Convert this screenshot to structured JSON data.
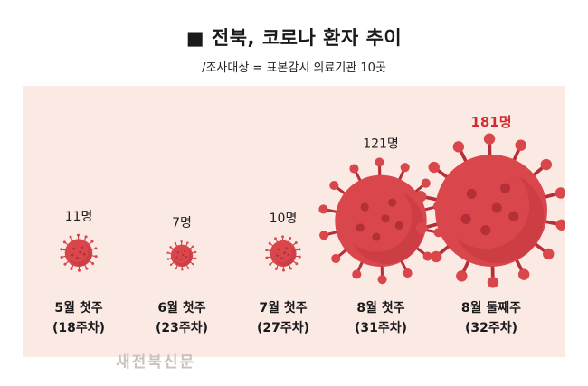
{
  "header": {
    "title": "■ 전북, 코로나 환자 추이",
    "subtitle": "/조사대상 = 표본감시 의료기관 10곳"
  },
  "watermark": "새전북신문",
  "colors": {
    "background_panel": "#fbe9e4",
    "virus_body": "#d9474c",
    "virus_dark": "#b52f36",
    "highlight_label": "#d42a2f",
    "label": "#222222"
  },
  "icons": [
    "coronavirus-icon"
  ],
  "chart_data": {
    "type": "bar",
    "mark": "virus-icon-size",
    "categories": [
      "5월 첫주\n(18주차)",
      "6월 첫주\n(23주차)",
      "7월 첫주\n(27주차)",
      "8월 첫주\n(31주차)",
      "8월 둘째주\n(32주차)"
    ],
    "category_lines": [
      [
        "5월 첫주",
        "(18주차)"
      ],
      [
        "6월 첫주",
        "(23주차)"
      ],
      [
        "7월 첫주",
        "(27주차)"
      ],
      [
        "8월 첫주",
        "(31주차)"
      ],
      [
        "8월 둘째주",
        "(32주차)"
      ]
    ],
    "values": [
      11,
      7,
      10,
      121,
      181
    ],
    "value_labels": [
      "11명",
      "7명",
      "10명",
      "121명",
      "181명"
    ],
    "highlight_index": 4,
    "title": "",
    "xlabel": "",
    "ylabel": ""
  }
}
